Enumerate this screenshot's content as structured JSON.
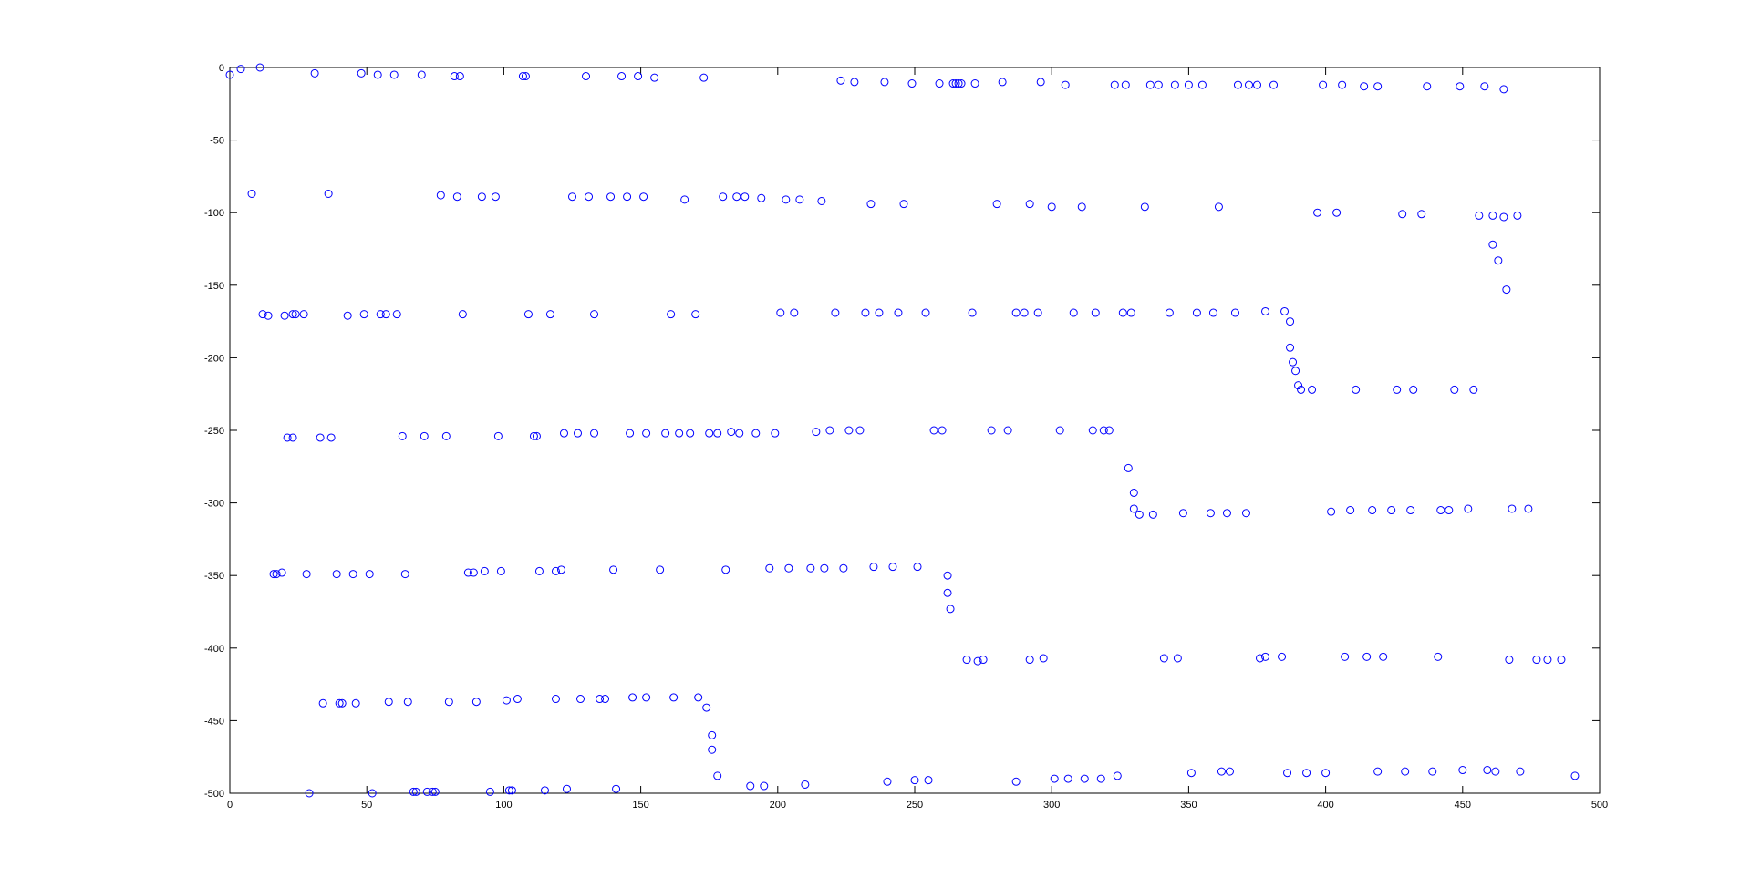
{
  "chart_data": {
    "type": "scatter",
    "title": "",
    "xlabel": "",
    "ylabel": "",
    "xlim": [
      0,
      500
    ],
    "ylim": [
      -500,
      0
    ],
    "x_ticks": [
      "0",
      "50",
      "100",
      "150",
      "200",
      "250",
      "300",
      "350",
      "400",
      "450",
      "500"
    ],
    "y_ticks": [
      "0",
      "-50",
      "-100",
      "-150",
      "-200",
      "-250",
      "-300",
      "-350",
      "-400",
      "-450",
      "-500"
    ],
    "grid": false,
    "marker": "open-circle",
    "color": "#0000ff",
    "series": [
      {
        "points": [
          [
            0,
            -5
          ],
          [
            4,
            -1
          ],
          [
            11,
            0
          ],
          [
            31,
            -4
          ],
          [
            48,
            -4
          ],
          [
            54,
            -5
          ],
          [
            60,
            -5
          ],
          [
            70,
            -5
          ],
          [
            82,
            -6
          ],
          [
            84,
            -6
          ],
          [
            107,
            -6
          ],
          [
            108,
            -6
          ],
          [
            130,
            -6
          ],
          [
            143,
            -6
          ],
          [
            149,
            -6
          ],
          [
            155,
            -7
          ],
          [
            173,
            -7
          ],
          [
            223,
            -9
          ],
          [
            228,
            -10
          ],
          [
            239,
            -10
          ],
          [
            249,
            -11
          ],
          [
            259,
            -11
          ],
          [
            264,
            -11
          ],
          [
            265,
            -11
          ],
          [
            266,
            -11
          ],
          [
            267,
            -11
          ],
          [
            272,
            -11
          ],
          [
            282,
            -10
          ],
          [
            296,
            -10
          ],
          [
            305,
            -12
          ],
          [
            323,
            -12
          ],
          [
            327,
            -12
          ],
          [
            336,
            -12
          ],
          [
            339,
            -12
          ],
          [
            345,
            -12
          ],
          [
            350,
            -12
          ],
          [
            355,
            -12
          ],
          [
            368,
            -12
          ],
          [
            372,
            -12
          ],
          [
            375,
            -12
          ],
          [
            381,
            -12
          ],
          [
            399,
            -12
          ],
          [
            406,
            -12
          ],
          [
            414,
            -13
          ],
          [
            419,
            -13
          ],
          [
            437,
            -13
          ],
          [
            449,
            -13
          ],
          [
            458,
            -13
          ],
          [
            465,
            -15
          ],
          [
            8,
            -87
          ],
          [
            36,
            -87
          ],
          [
            77,
            -88
          ],
          [
            83,
            -89
          ],
          [
            92,
            -89
          ],
          [
            97,
            -89
          ],
          [
            125,
            -89
          ],
          [
            131,
            -89
          ],
          [
            139,
            -89
          ],
          [
            145,
            -89
          ],
          [
            151,
            -89
          ],
          [
            166,
            -91
          ],
          [
            180,
            -89
          ],
          [
            185,
            -89
          ],
          [
            188,
            -89
          ],
          [
            194,
            -90
          ],
          [
            203,
            -91
          ],
          [
            208,
            -91
          ],
          [
            216,
            -92
          ],
          [
            234,
            -94
          ],
          [
            246,
            -94
          ],
          [
            280,
            -94
          ],
          [
            292,
            -94
          ],
          [
            300,
            -96
          ],
          [
            311,
            -96
          ],
          [
            334,
            -96
          ],
          [
            361,
            -96
          ],
          [
            397,
            -100
          ],
          [
            404,
            -100
          ],
          [
            428,
            -101
          ],
          [
            435,
            -101
          ],
          [
            456,
            -102
          ],
          [
            461,
            -102
          ],
          [
            465,
            -103
          ],
          [
            470,
            -102
          ],
          [
            461,
            -122
          ],
          [
            463,
            -133
          ],
          [
            466,
            -153
          ],
          [
            12,
            -170
          ],
          [
            14,
            -171
          ],
          [
            20,
            -171
          ],
          [
            23,
            -170
          ],
          [
            24,
            -170
          ],
          [
            27,
            -170
          ],
          [
            43,
            -171
          ],
          [
            49,
            -170
          ],
          [
            55,
            -170
          ],
          [
            57,
            -170
          ],
          [
            61,
            -170
          ],
          [
            85,
            -170
          ],
          [
            109,
            -170
          ],
          [
            117,
            -170
          ],
          [
            133,
            -170
          ],
          [
            161,
            -170
          ],
          [
            170,
            -170
          ],
          [
            201,
            -169
          ],
          [
            206,
            -169
          ],
          [
            221,
            -169
          ],
          [
            232,
            -169
          ],
          [
            237,
            -169
          ],
          [
            244,
            -169
          ],
          [
            254,
            -169
          ],
          [
            271,
            -169
          ],
          [
            287,
            -169
          ],
          [
            290,
            -169
          ],
          [
            295,
            -169
          ],
          [
            308,
            -169
          ],
          [
            316,
            -169
          ],
          [
            326,
            -169
          ],
          [
            329,
            -169
          ],
          [
            343,
            -169
          ],
          [
            353,
            -169
          ],
          [
            359,
            -169
          ],
          [
            367,
            -169
          ],
          [
            378,
            -168
          ],
          [
            385,
            -168
          ],
          [
            387,
            -175
          ],
          [
            387,
            -193
          ],
          [
            388,
            -203
          ],
          [
            389,
            -209
          ],
          [
            390,
            -219
          ],
          [
            391,
            -222
          ],
          [
            395,
            -222
          ],
          [
            411,
            -222
          ],
          [
            426,
            -222
          ],
          [
            432,
            -222
          ],
          [
            447,
            -222
          ],
          [
            454,
            -222
          ],
          [
            21,
            -255
          ],
          [
            23,
            -255
          ],
          [
            33,
            -255
          ],
          [
            37,
            -255
          ],
          [
            63,
            -254
          ],
          [
            71,
            -254
          ],
          [
            79,
            -254
          ],
          [
            98,
            -254
          ],
          [
            111,
            -254
          ],
          [
            112,
            -254
          ],
          [
            122,
            -252
          ],
          [
            127,
            -252
          ],
          [
            133,
            -252
          ],
          [
            146,
            -252
          ],
          [
            152,
            -252
          ],
          [
            159,
            -252
          ],
          [
            164,
            -252
          ],
          [
            168,
            -252
          ],
          [
            175,
            -252
          ],
          [
            178,
            -252
          ],
          [
            183,
            -251
          ],
          [
            186,
            -252
          ],
          [
            192,
            -252
          ],
          [
            199,
            -252
          ],
          [
            214,
            -251
          ],
          [
            219,
            -250
          ],
          [
            226,
            -250
          ],
          [
            230,
            -250
          ],
          [
            257,
            -250
          ],
          [
            260,
            -250
          ],
          [
            278,
            -250
          ],
          [
            284,
            -250
          ],
          [
            303,
            -250
          ],
          [
            315,
            -250
          ],
          [
            319,
            -250
          ],
          [
            321,
            -250
          ],
          [
            328,
            -276
          ],
          [
            330,
            -293
          ],
          [
            330,
            -304
          ],
          [
            332,
            -308
          ],
          [
            337,
            -308
          ],
          [
            348,
            -307
          ],
          [
            358,
            -307
          ],
          [
            364,
            -307
          ],
          [
            371,
            -307
          ],
          [
            402,
            -306
          ],
          [
            409,
            -305
          ],
          [
            417,
            -305
          ],
          [
            424,
            -305
          ],
          [
            431,
            -305
          ],
          [
            442,
            -305
          ],
          [
            445,
            -305
          ],
          [
            452,
            -304
          ],
          [
            468,
            -304
          ],
          [
            474,
            -304
          ],
          [
            16,
            -349
          ],
          [
            17,
            -349
          ],
          [
            19,
            -348
          ],
          [
            28,
            -349
          ],
          [
            39,
            -349
          ],
          [
            45,
            -349
          ],
          [
            51,
            -349
          ],
          [
            64,
            -349
          ],
          [
            87,
            -348
          ],
          [
            89,
            -348
          ],
          [
            93,
            -347
          ],
          [
            99,
            -347
          ],
          [
            113,
            -347
          ],
          [
            119,
            -347
          ],
          [
            121,
            -346
          ],
          [
            140,
            -346
          ],
          [
            157,
            -346
          ],
          [
            181,
            -346
          ],
          [
            197,
            -345
          ],
          [
            204,
            -345
          ],
          [
            212,
            -345
          ],
          [
            217,
            -345
          ],
          [
            224,
            -345
          ],
          [
            235,
            -344
          ],
          [
            242,
            -344
          ],
          [
            251,
            -344
          ],
          [
            262,
            -350
          ],
          [
            262,
            -362
          ],
          [
            263,
            -373
          ],
          [
            269,
            -408
          ],
          [
            273,
            -409
          ],
          [
            275,
            -408
          ],
          [
            292,
            -408
          ],
          [
            297,
            -407
          ],
          [
            341,
            -407
          ],
          [
            346,
            -407
          ],
          [
            376,
            -407
          ],
          [
            378,
            -406
          ],
          [
            384,
            -406
          ],
          [
            407,
            -406
          ],
          [
            415,
            -406
          ],
          [
            421,
            -406
          ],
          [
            441,
            -406
          ],
          [
            467,
            -408
          ],
          [
            477,
            -408
          ],
          [
            481,
            -408
          ],
          [
            486,
            -408
          ],
          [
            34,
            -438
          ],
          [
            40,
            -438
          ],
          [
            41,
            -438
          ],
          [
            46,
            -438
          ],
          [
            58,
            -437
          ],
          [
            65,
            -437
          ],
          [
            80,
            -437
          ],
          [
            90,
            -437
          ],
          [
            101,
            -436
          ],
          [
            105,
            -435
          ],
          [
            119,
            -435
          ],
          [
            128,
            -435
          ],
          [
            135,
            -435
          ],
          [
            137,
            -435
          ],
          [
            147,
            -434
          ],
          [
            152,
            -434
          ],
          [
            162,
            -434
          ],
          [
            171,
            -434
          ],
          [
            174,
            -441
          ],
          [
            176,
            -460
          ],
          [
            176,
            -470
          ],
          [
            178,
            -488
          ],
          [
            190,
            -495
          ],
          [
            195,
            -495
          ],
          [
            210,
            -494
          ],
          [
            240,
            -492
          ],
          [
            250,
            -491
          ],
          [
            255,
            -491
          ],
          [
            287,
            -492
          ],
          [
            301,
            -490
          ],
          [
            306,
            -490
          ],
          [
            312,
            -490
          ],
          [
            318,
            -490
          ],
          [
            324,
            -488
          ],
          [
            351,
            -486
          ],
          [
            362,
            -485
          ],
          [
            365,
            -485
          ],
          [
            386,
            -486
          ],
          [
            393,
            -486
          ],
          [
            400,
            -486
          ],
          [
            419,
            -485
          ],
          [
            429,
            -485
          ],
          [
            439,
            -485
          ],
          [
            450,
            -484
          ],
          [
            459,
            -484
          ],
          [
            462,
            -485
          ],
          [
            471,
            -485
          ],
          [
            491,
            -488
          ],
          [
            29,
            -500
          ],
          [
            52,
            -500
          ],
          [
            67,
            -499
          ],
          [
            68,
            -499
          ],
          [
            72,
            -499
          ],
          [
            74,
            -499
          ],
          [
            75,
            -499
          ],
          [
            95,
            -499
          ],
          [
            102,
            -498
          ],
          [
            103,
            -498
          ],
          [
            115,
            -498
          ],
          [
            123,
            -497
          ],
          [
            141,
            -497
          ]
        ]
      }
    ]
  }
}
